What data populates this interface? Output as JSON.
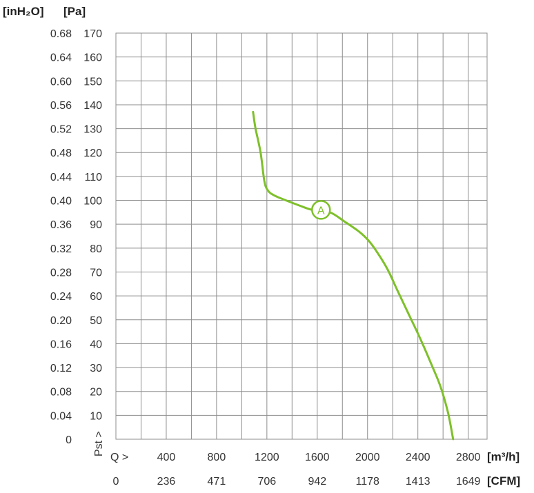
{
  "chart_data": {
    "type": "line",
    "title": "",
    "units": {
      "left_inh2o": "[inH₂O]",
      "left_pa": "[Pa]",
      "bottom_m3h": "[m³/h]",
      "bottom_cfm": "[CFM]"
    },
    "ylabel": "Pst >",
    "xlabel": "Q >",
    "ylim": [
      0,
      170
    ],
    "xlim": [
      0,
      2950
    ],
    "pa_ticks": [
      "170",
      "160",
      "150",
      "140",
      "130",
      "120",
      "110",
      "100",
      "90",
      "80",
      "70",
      "60",
      "50",
      "40",
      "30",
      "20",
      "10"
    ],
    "pa_tick_values": [
      170,
      160,
      150,
      140,
      130,
      120,
      110,
      100,
      90,
      80,
      70,
      60,
      50,
      40,
      30,
      20,
      10
    ],
    "inh2o_ticks": [
      "0.68",
      "0.64",
      "0.60",
      "0.56",
      "0.52",
      "0.48",
      "0.44",
      "0.40",
      "0.36",
      "0.32",
      "0.28",
      "0.24",
      "0.20",
      "0.16",
      "0.12",
      "0.08",
      "0.04",
      "0"
    ],
    "inh2o_tick_values": [
      170,
      160,
      150,
      140,
      130,
      120,
      110,
      100,
      90,
      80,
      70,
      60,
      50,
      40,
      30,
      20,
      10,
      0
    ],
    "m3h_ticks": [
      "400",
      "800",
      "1200",
      "1600",
      "2000",
      "2400",
      "2800"
    ],
    "m3h_tick_values": [
      400,
      800,
      1200,
      1600,
      2000,
      2400,
      2800
    ],
    "cfm_ticks": [
      "0",
      "236",
      "471",
      "706",
      "942",
      "1178",
      "1413",
      "1649"
    ],
    "cfm_tick_values": [
      0,
      400,
      800,
      1200,
      1600,
      2000,
      2400,
      2800
    ],
    "series": [
      {
        "color": "#7ec02a",
        "x": [
          1090,
          1110,
          1150,
          1180,
          1210,
          1260,
          1350,
          1450,
          1560,
          1700,
          1820,
          1930,
          2010,
          2080,
          2160,
          2240,
          2330,
          2420,
          2510,
          2580,
          2640,
          2680
        ],
        "y": [
          137,
          130,
          120,
          108,
          104,
          102,
          100,
          98,
          96,
          95,
          91,
          87,
          83,
          78,
          71,
          62,
          52,
          42,
          31,
          22,
          11,
          0
        ]
      }
    ],
    "annotations": [
      {
        "label": "A",
        "x": 1630,
        "y": 96
      }
    ],
    "grid": true
  }
}
